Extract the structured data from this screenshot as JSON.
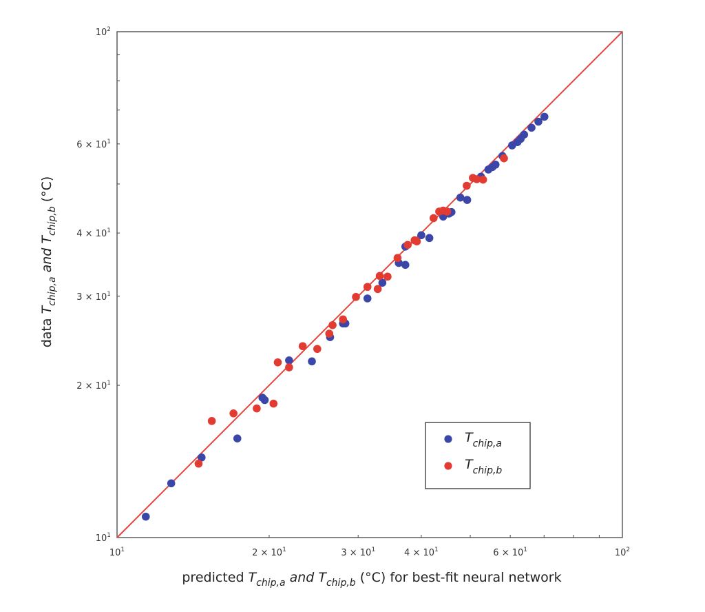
{
  "chart_data": {
    "type": "scatter",
    "title": "",
    "xlabel": {
      "prefix": "predicted ",
      "var_a": "T",
      "sub_a": "chip,a",
      "mid": " and ",
      "var_b": "T",
      "sub_b": "chip,b",
      "suffix": " (°C) for best-fit neural network"
    },
    "ylabel": {
      "prefix": "data ",
      "var_a": "T",
      "sub_a": "chip,a",
      "mid": " and ",
      "var_b": "T",
      "sub_b": "chip,b",
      "suffix": " (°C)"
    },
    "xscale": "log",
    "yscale": "log",
    "xlim": [
      10,
      100
    ],
    "ylim": [
      10,
      100
    ],
    "grid": false,
    "legend_position": "lower-right",
    "major_ticks": [
      {
        "value": 10,
        "base": "10",
        "exp": "1"
      },
      {
        "value": 100,
        "base": "10",
        "exp": "2"
      }
    ],
    "minor_tick_labels": [
      {
        "value": 20,
        "text": "2 × 10",
        "exp": "1"
      },
      {
        "value": 30,
        "text": "3 × 10",
        "exp": "1"
      },
      {
        "value": 40,
        "text": "4 × 10",
        "exp": "1"
      },
      {
        "value": 60,
        "text": "6 × 10",
        "exp": "1"
      }
    ],
    "reference_line": {
      "x": [
        10,
        100
      ],
      "y": [
        10,
        100
      ],
      "color": "#e8453c"
    },
    "series": [
      {
        "name_var": "T",
        "name_sub": "chip,a",
        "color": "#3b47a8",
        "points": [
          [
            11.4,
            11.0
          ],
          [
            12.8,
            12.8
          ],
          [
            14.7,
            14.4
          ],
          [
            17.3,
            15.7
          ],
          [
            19.4,
            18.9
          ],
          [
            19.6,
            18.7
          ],
          [
            21.9,
            22.4
          ],
          [
            24.3,
            22.3
          ],
          [
            26.4,
            24.9
          ],
          [
            28.0,
            26.5
          ],
          [
            28.3,
            26.5
          ],
          [
            31.3,
            29.7
          ],
          [
            33.5,
            31.9
          ],
          [
            36.1,
            34.9
          ],
          [
            37.2,
            34.6
          ],
          [
            37.2,
            37.6
          ],
          [
            40.0,
            39.6
          ],
          [
            41.5,
            39.1
          ],
          [
            44.2,
            43.1
          ],
          [
            45.4,
            43.7
          ],
          [
            45.9,
            44.0
          ],
          [
            47.8,
            47.0
          ],
          [
            49.3,
            46.5
          ],
          [
            52.5,
            51.7
          ],
          [
            54.3,
            53.4
          ],
          [
            55.3,
            54.0
          ],
          [
            56.1,
            54.6
          ],
          [
            57.9,
            56.8
          ],
          [
            60.5,
            59.6
          ],
          [
            62.0,
            60.5
          ],
          [
            62.9,
            61.4
          ],
          [
            63.9,
            62.6
          ],
          [
            66.1,
            64.6
          ],
          [
            68.2,
            66.4
          ],
          [
            70.1,
            67.9
          ]
        ]
      },
      {
        "name_var": "T",
        "name_sub": "chip,b",
        "color": "#e23b32",
        "points": [
          [
            14.5,
            14.0
          ],
          [
            15.4,
            17.0
          ],
          [
            17.0,
            17.6
          ],
          [
            18.9,
            18.0
          ],
          [
            20.4,
            18.4
          ],
          [
            20.8,
            22.2
          ],
          [
            21.9,
            21.7
          ],
          [
            23.3,
            23.9
          ],
          [
            24.9,
            23.6
          ],
          [
            26.3,
            25.3
          ],
          [
            26.7,
            26.3
          ],
          [
            28.0,
            27.0
          ],
          [
            29.7,
            29.9
          ],
          [
            31.3,
            31.3
          ],
          [
            32.8,
            31.0
          ],
          [
            33.1,
            32.9
          ],
          [
            34.3,
            32.8
          ],
          [
            35.9,
            35.7
          ],
          [
            37.6,
            37.9
          ],
          [
            38.8,
            38.7
          ],
          [
            39.2,
            38.5
          ],
          [
            42.3,
            42.8
          ],
          [
            43.4,
            44.1
          ],
          [
            44.2,
            44.3
          ],
          [
            45.0,
            44.1
          ],
          [
            49.2,
            49.6
          ],
          [
            50.6,
            51.4
          ],
          [
            51.5,
            51.1
          ],
          [
            53.0,
            51.0
          ],
          [
            58.3,
            56.2
          ]
        ]
      }
    ]
  }
}
